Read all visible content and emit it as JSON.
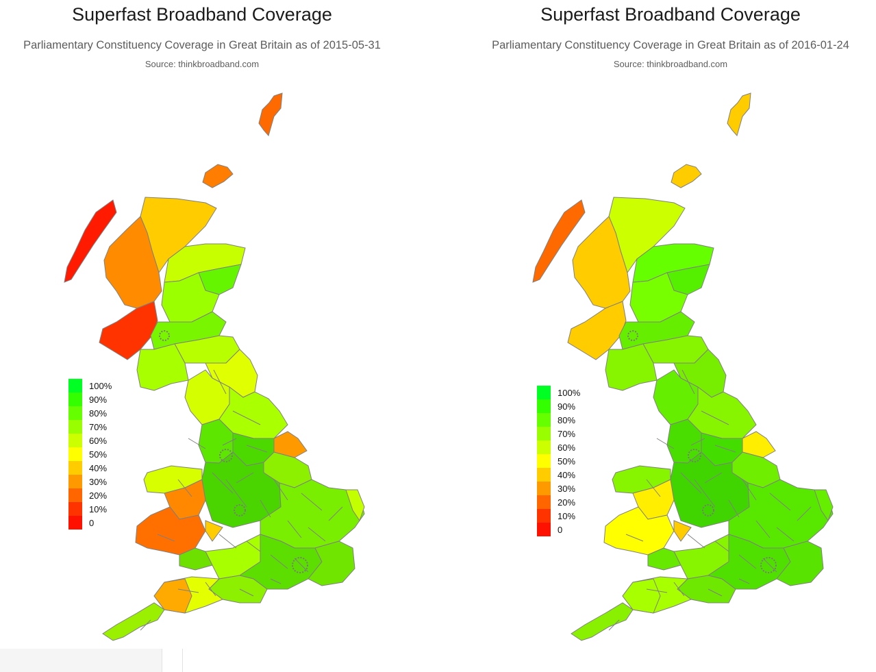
{
  "maps": [
    {
      "title": "Superfast Broadband Coverage",
      "subtitle": "Parliamentary Constituency Coverage in Great Britain as of 2015-05-31",
      "source": "Source: thinkbroadband.com",
      "region_colors": {
        "shetland": "#ff6a00",
        "orkney": "#ff7d00",
        "hebrides": "#ff1a00",
        "highland_north": "#ffcc00",
        "highland_west": "#ff8c00",
        "argyll": "#ff3300",
        "grampian": "#c8ff00",
        "aberdeen": "#66f500",
        "tayside": "#9bff00",
        "central_scotland": "#7af500",
        "borders": "#b8ff00",
        "dumfries": "#a8ff00",
        "northumberland": "#e0ff00",
        "cumbria": "#d4ff00",
        "north_yorkshire": "#aaff00",
        "yorkshire_urban": "#4cd900",
        "holderness": "#ff9900",
        "lancashire": "#5ce600",
        "midlands": "#4ad400",
        "lincolnshire": "#8cf000",
        "east_anglia": "#7aee00",
        "norfolk_coast": "#c4ff00",
        "north_wales": "#d8ff00",
        "mid_wales": "#ff8800",
        "west_wales": "#ff7000",
        "south_wales": "#6ee000",
        "herefordshire": "#ffcc00",
        "southwest": "#a8ff00",
        "devon": "#e4ff00",
        "devon_north": "#ffaa00",
        "cornwall": "#9af000",
        "wessex": "#8cf000",
        "london_south": "#5cdf00",
        "kent": "#70e600"
      },
      "legend_colors": [
        "#00ff22",
        "#33ff00",
        "#66ff00",
        "#99ff00",
        "#ccff00",
        "#ffff00",
        "#ffcc00",
        "#ff9900",
        "#ff6600",
        "#ff3300",
        "#ff1100"
      ],
      "legend_labels": [
        "100%",
        "90%",
        "80%",
        "70%",
        "60%",
        "50%",
        "40%",
        "30%",
        "20%",
        "10%",
        "0"
      ]
    },
    {
      "title": "Superfast Broadband Coverage",
      "subtitle": "Parliamentary Constituency Coverage in Great Britain as of 2016-01-24",
      "source": "Source: thinkbroadband.com",
      "region_colors": {
        "shetland": "#ffcc00",
        "orkney": "#ffcc00",
        "hebrides": "#ff6a00",
        "highland_north": "#ccff00",
        "highland_west": "#ffcc00",
        "argyll": "#ffcc00",
        "grampian": "#66ff00",
        "aberdeen": "#55f000",
        "tayside": "#77ff00",
        "central_scotland": "#66ee00",
        "borders": "#88f500",
        "dumfries": "#88f500",
        "northumberland": "#77ee00",
        "cumbria": "#66ee00",
        "north_yorkshire": "#88f500",
        "yorkshire_urban": "#44dd00",
        "holderness": "#ffee00",
        "lancashire": "#4ade00",
        "midlands": "#40d400",
        "lincolnshire": "#70ee00",
        "east_anglia": "#58e800",
        "norfolk_coast": "#66ee00",
        "north_wales": "#88f500",
        "mid_wales": "#ffee00",
        "west_wales": "#ffff00",
        "south_wales": "#66e800",
        "herefordshire": "#ffcc00",
        "southwest": "#88f500",
        "devon": "#a8ff00",
        "devon_north": "#a8ff00",
        "cornwall": "#88f000",
        "wessex": "#6ee800",
        "london_south": "#50e000",
        "kent": "#58e400"
      },
      "legend_colors": [
        "#00ff22",
        "#33ff00",
        "#66ff00",
        "#99ff00",
        "#ccff00",
        "#ffff00",
        "#ffcc00",
        "#ff9900",
        "#ff6600",
        "#ff3300",
        "#ff1100"
      ],
      "legend_labels": [
        "100%",
        "90%",
        "80%",
        "70%",
        "60%",
        "50%",
        "40%",
        "30%",
        "20%",
        "10%",
        "0"
      ]
    }
  ]
}
